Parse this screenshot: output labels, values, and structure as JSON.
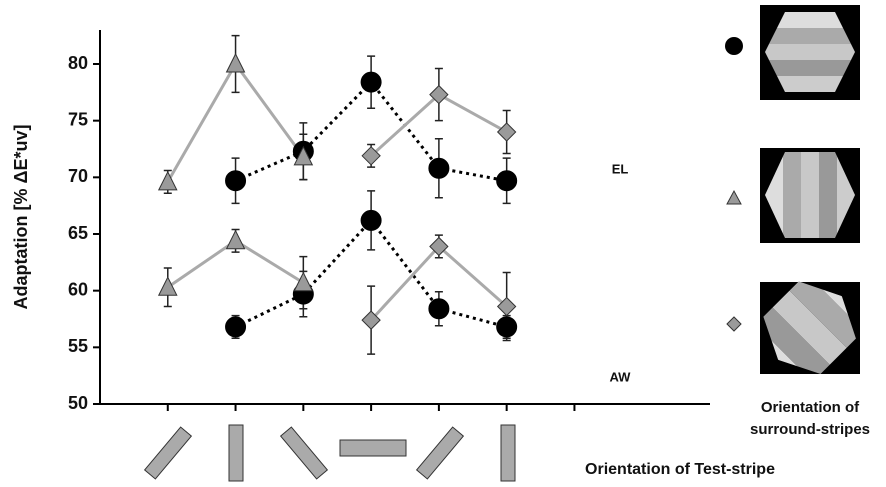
{
  "chart_data": {
    "type": "line",
    "y_label": "Adaptation [% ΔE*uv]",
    "x_label": "Orientation of Test-stripe",
    "legend_title": [
      "Orientation of",
      "surround-stripes"
    ],
    "annotations": [
      "EL",
      "AW"
    ],
    "xlim": [
      0,
      9
    ],
    "xticks": [
      1,
      2,
      3,
      4,
      5,
      6,
      7
    ],
    "ylim": [
      50,
      83
    ],
    "yticks": [
      50,
      55,
      60,
      65,
      70,
      75,
      80
    ],
    "series": [
      {
        "marker": "circle",
        "color": "#000000",
        "dash": true,
        "x": [
          2,
          3,
          4,
          5,
          6
        ],
        "values": [
          69.7,
          72.3,
          78.4,
          70.8,
          69.7
        ],
        "errors": [
          2,
          2.5,
          2.3,
          2.6,
          2
        ]
      },
      {
        "marker": "triangle",
        "color": "#9a9a9a",
        "dash": false,
        "x": [
          1,
          2,
          3
        ],
        "values": [
          69.6,
          80.0,
          71.8
        ],
        "errors": [
          1,
          2.5,
          2
        ]
      },
      {
        "marker": "diamond",
        "color": "#9a9a9a",
        "dash": false,
        "x": [
          4,
          5,
          6
        ],
        "values": [
          71.9,
          77.3,
          74.0
        ],
        "errors": [
          1,
          2.3,
          1.9
        ]
      },
      {
        "marker": "circle",
        "color": "#000000",
        "dash": true,
        "x": [
          2,
          3,
          4,
          5,
          6
        ],
        "values": [
          56.8,
          59.7,
          66.2,
          58.4,
          56.8
        ],
        "errors": [
          1,
          2,
          2.6,
          1.5,
          1
        ]
      },
      {
        "marker": "triangle",
        "color": "#9a9a9a",
        "dash": false,
        "x": [
          1,
          2,
          3
        ],
        "values": [
          60.3,
          64.4,
          60.7
        ],
        "errors": [
          1.7,
          1,
          2.3
        ]
      },
      {
        "marker": "diamond",
        "color": "#9a9a9a",
        "dash": false,
        "x": [
          4,
          5,
          6
        ],
        "values": [
          57.4,
          63.9,
          58.6
        ],
        "errors": [
          3,
          1,
          3
        ]
      }
    ]
  }
}
